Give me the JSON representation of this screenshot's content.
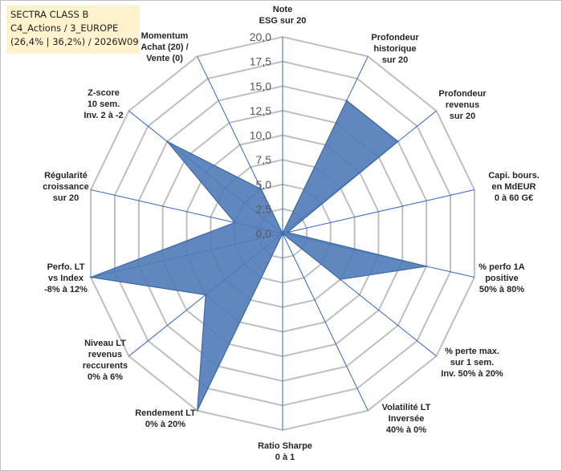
{
  "header": {
    "line1": "SECTRA CLASS B",
    "line2": "C4_Actions / 3_EUROPE",
    "line3": "(26,4% | 36,2%) / 2026W09"
  },
  "colors": {
    "fill": "#4f7bb8",
    "stroke": "#3d6aa8",
    "grid": "#bfbfbf",
    "spoke": "#3366cc",
    "header_bg": "#fff2cc"
  },
  "chart_data": {
    "type": "radar",
    "rmin": 0,
    "rmax": 20,
    "tick_values": [
      0,
      2.5,
      5,
      7.5,
      10,
      12.5,
      15,
      17.5,
      20
    ],
    "tick_labels": [
      "0,0",
      "2,5",
      "5,0",
      "7,5",
      "10,0",
      "12,5",
      "15,0",
      "17,5",
      "20,0"
    ],
    "axes": [
      {
        "lines": [
          "Note",
          "ESG sur 20"
        ],
        "value": 0
      },
      {
        "lines": [
          "Profondeur",
          "historique",
          "sur 20"
        ],
        "value": 15
      },
      {
        "lines": [
          "Profondeur",
          "revenus",
          "sur 20"
        ],
        "value": 15
      },
      {
        "lines": [
          "Capi. bours.",
          "en MdEUR",
          "0 à 60 G€"
        ],
        "value": 0.5
      },
      {
        "lines": [
          "% perfo 1A",
          "positive",
          "50% à 80%"
        ],
        "value": 15
      },
      {
        "lines": [
          "% perte max.",
          "sur 1 sem.",
          "Inv. 50% à 20%"
        ],
        "value": 7.5
      },
      {
        "lines": [
          "Volatilité LT",
          "Inversée",
          "40% à 0%"
        ],
        "value": 0
      },
      {
        "lines": [
          "Ratio Sharpe",
          "0 à 1"
        ],
        "value": 0
      },
      {
        "lines": [
          "Rendement LT",
          "0% à 20%"
        ],
        "value": 20
      },
      {
        "lines": [
          "Niveau LT",
          "revenus",
          "reccurents",
          "0% à 6%"
        ],
        "value": 10
      },
      {
        "lines": [
          "Perfo. LT",
          "vs Index",
          "-8% à 12%"
        ],
        "value": 20
      },
      {
        "lines": [
          "Régularité",
          "croissance",
          "sur 20"
        ],
        "value": 5
      },
      {
        "lines": [
          "Z-score",
          "10 sem.",
          "Inv. 2 à -2"
        ],
        "value": 15
      },
      {
        "lines": [
          "Momentum",
          "Achat (20) /",
          "Vente (0)"
        ],
        "value": 5
      }
    ]
  }
}
